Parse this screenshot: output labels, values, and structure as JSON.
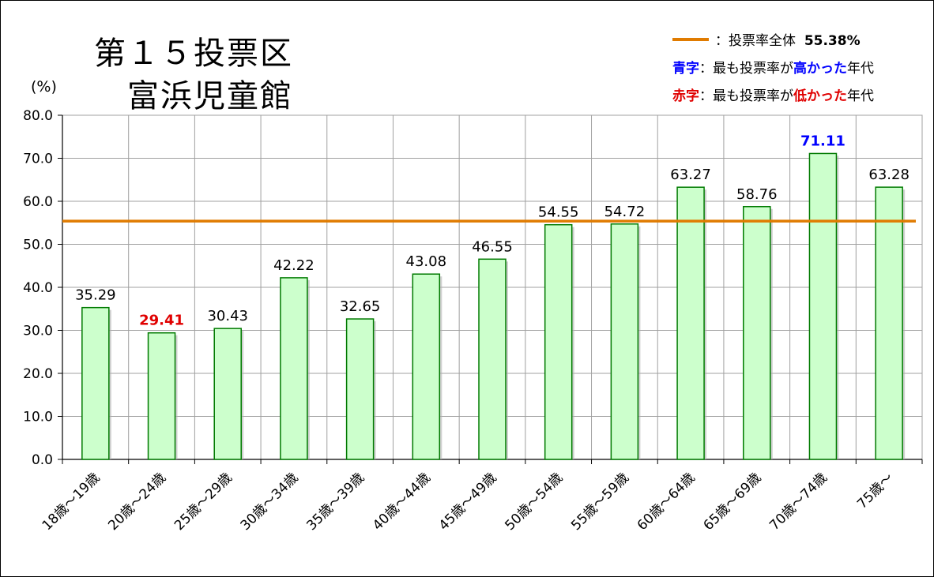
{
  "chart_data": {
    "type": "bar",
    "title": "第１５投票区",
    "subtitle": "富浜児童館",
    "ylabel": "(%)",
    "ylim": [
      0,
      80
    ],
    "yticks": [
      "0.0",
      "10.0",
      "20.0",
      "30.0",
      "40.0",
      "50.0",
      "60.0",
      "70.0",
      "80.0"
    ],
    "grid": true,
    "categories": [
      "18歳～19歳",
      "20歳～24歳",
      "25歳～29歳",
      "30歳～34歳",
      "35歳～39歳",
      "40歳～44歳",
      "45歳～49歳",
      "50歳～54歳",
      "55歳～59歳",
      "60歳～64歳",
      "65歳～69歳",
      "70歳～74歳",
      "75歳～"
    ],
    "values": [
      35.29,
      29.41,
      30.43,
      42.22,
      32.65,
      43.08,
      46.55,
      54.55,
      54.72,
      63.27,
      58.76,
      71.11,
      63.28
    ],
    "value_labels": [
      "35.29",
      "29.41",
      "30.43",
      "42.22",
      "32.65",
      "43.08",
      "46.55",
      "54.55",
      "54.72",
      "63.27",
      "58.76",
      "71.11",
      "63.28"
    ],
    "highest_index": 11,
    "lowest_index": 1,
    "reference_line": {
      "value": 55.38,
      "label": "投票率全体",
      "value_label": "55.38%"
    },
    "legend_placement": "top-right",
    "colors": {
      "bar_fill": "#ccffcc",
      "bar_stroke": "#007a00",
      "reference_line": "#e07b00",
      "high": "#0000ff",
      "low": "#e00000",
      "grid": "#a0a0a0"
    }
  },
  "legend": {
    "line_text": "：投票率全体",
    "line_value": "55.38%",
    "blue_key": "青字",
    "blue_text1": "：最も投票率が",
    "blue_emph": "高かった",
    "blue_text2": "年代",
    "red_key": "赤字",
    "red_text1": "：最も投票率が",
    "red_emph": "低かった",
    "red_text2": "年代"
  }
}
